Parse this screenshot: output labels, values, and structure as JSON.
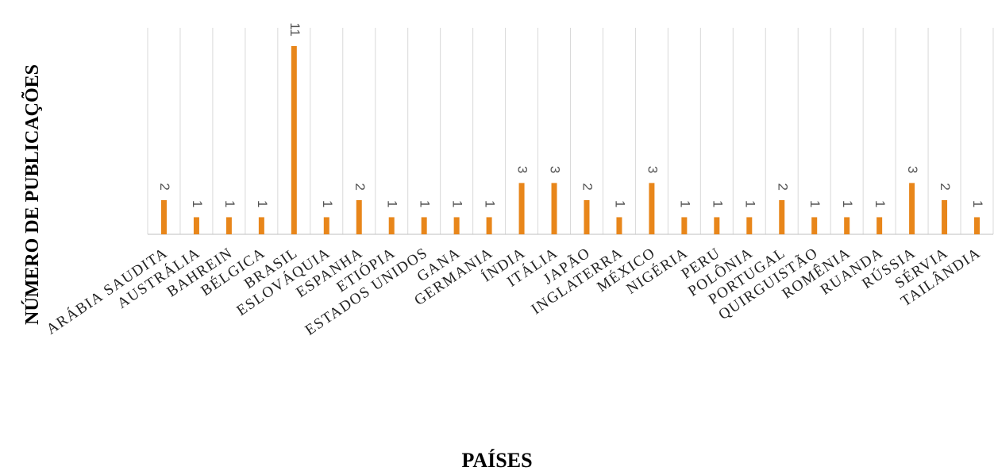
{
  "chart_data": {
    "type": "bar",
    "title": "",
    "xlabel": "PAÍSES",
    "ylabel": "NÚMERO DE PUBLICAÇÕES",
    "categories": [
      "ARÁBIA SAUDITA",
      "AUSTRÁLIA",
      "BAHREIN",
      "BÉLGICA",
      "BRASIL",
      "ESLOVÁQUIA",
      "ESPANHA",
      "ETIÓPIA",
      "ESTADOS UNIDOS",
      "GANA",
      "GERMANIA",
      "ÍNDIA",
      "ITÁLIA",
      "JAPÃO",
      "INGLATERRA",
      "MÉXICO",
      "NIGÉRIA",
      "PERU",
      "POLÔNIA",
      "PORTUGAL",
      "QUIRGUISTÃO",
      "ROMÊNIA",
      "RUANDA",
      "RÚSSIA",
      "SÉRVIA",
      "TAILÂNDIA"
    ],
    "series": [
      {
        "values": [
          2,
          1,
          1,
          1,
          11,
          1,
          2,
          1,
          1,
          1,
          1,
          3,
          3,
          2,
          1,
          3,
          1,
          1,
          1,
          2,
          1,
          1,
          1,
          3,
          2,
          1
        ]
      }
    ],
    "data_labels": [
      "2",
      "1",
      "1",
      "1",
      "11",
      "1",
      "2",
      "1",
      "1",
      "1",
      "1",
      "3",
      "3",
      "2",
      "1",
      "3",
      "1",
      "1",
      "1",
      "2",
      "1",
      "1",
      "1",
      "3",
      "2",
      "1"
    ],
    "ylim": [
      0,
      12
    ],
    "grid": "vertical",
    "legend": "none",
    "colors": {
      "bar": "#E8861A",
      "grid": "#d9d9d9",
      "axis": "#bfbfbf"
    }
  }
}
